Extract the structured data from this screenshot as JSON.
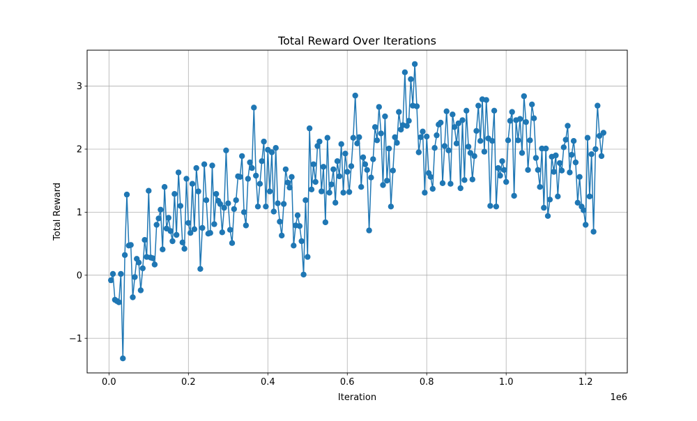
{
  "chart_data": {
    "type": "line",
    "title": "Total Reward Over Iterations",
    "xlabel": "Iteration",
    "ylabel": "Total Reward",
    "x_offset_label": "1e6",
    "xlim": [
      -55000,
      1305000
    ],
    "ylim": [
      -1.55,
      3.57
    ],
    "xticks": [
      0,
      200000,
      400000,
      600000,
      800000,
      1000000,
      1200000
    ],
    "xtick_labels": [
      "0.0",
      "0.2",
      "0.4",
      "0.6",
      "0.8",
      "1.0",
      "1.2"
    ],
    "yticks": [
      -1,
      0,
      1,
      2,
      3
    ],
    "ytick_labels": [
      "−1",
      "0",
      "1",
      "2",
      "3"
    ],
    "grid": true,
    "line_color": "#1f77b4",
    "marker": "circle",
    "series": [
      {
        "x_start": 5000,
        "x_step": 5000,
        "values": [
          -0.08,
          0.02,
          -0.39,
          -0.41,
          -0.43,
          0.02,
          -1.32,
          0.32,
          1.28,
          0.47,
          0.48,
          -0.35,
          -0.03,
          0.26,
          0.2,
          -0.24,
          0.11,
          0.56,
          0.29,
          1.34,
          0.28,
          0.27,
          0.17,
          0.8,
          0.9,
          1.04,
          0.41,
          1.4,
          0.74,
          0.91,
          0.7,
          0.54,
          1.29,
          0.64,
          1.63,
          1.1,
          0.52,
          0.42,
          1.53,
          0.83,
          0.67,
          1.45,
          0.73,
          1.7,
          1.33,
          0.1,
          0.75,
          1.76,
          1.19,
          0.66,
          0.67,
          1.74,
          0.81,
          1.29,
          1.18,
          1.13,
          0.68,
          1.07,
          1.98,
          1.14,
          0.72,
          0.51,
          1.05,
          1.19,
          1.57,
          1.56,
          1.89,
          1.0,
          0.79,
          1.53,
          1.79,
          1.7,
          2.66,
          1.58,
          1.09,
          1.45,
          1.81,
          2.12,
          1.09,
          1.99,
          1.33,
          1.95,
          1.01,
          2.02,
          1.14,
          0.85,
          0.63,
          1.13,
          1.68,
          1.47,
          1.39,
          1.56,
          0.47,
          0.79,
          0.95,
          0.78,
          0.54,
          0.01,
          1.19,
          0.29,
          2.33,
          1.36,
          1.76,
          1.48,
          2.05,
          2.12,
          1.33,
          1.72,
          0.84,
          2.18,
          1.31,
          1.44,
          1.68,
          1.15,
          1.81,
          1.57,
          2.08,
          1.31,
          1.93,
          1.64,
          1.32,
          1.73,
          2.18,
          2.85,
          2.09,
          2.19,
          1.4,
          1.87,
          1.76,
          1.67,
          0.71,
          1.55,
          1.84,
          2.35,
          2.14,
          2.67,
          2.25,
          1.43,
          2.52,
          1.5,
          2.01,
          1.09,
          1.66,
          2.19,
          2.1,
          2.59,
          2.31,
          2.38,
          3.22,
          2.37,
          2.45,
          3.11,
          2.69,
          3.35,
          2.68,
          1.95,
          2.19,
          2.28,
          1.31,
          2.2,
          1.62,
          1.56,
          1.37,
          2.02,
          2.22,
          2.39,
          2.42,
          1.46,
          2.05,
          2.6,
          1.98,
          1.45,
          2.55,
          2.35,
          2.09,
          2.41,
          1.38,
          2.46,
          1.51,
          2.61,
          2.04,
          1.94,
          1.52,
          1.89,
          2.29,
          2.69,
          2.13,
          2.79,
          1.96,
          2.78,
          2.17,
          1.1,
          2.13,
          2.61,
          1.09,
          1.7,
          1.58,
          1.81,
          1.67,
          1.48,
          2.14,
          2.45,
          2.59,
          1.26,
          2.46,
          2.14,
          2.48,
          1.94,
          2.84,
          2.43,
          1.67,
          2.14,
          2.71,
          2.49,
          1.86,
          1.67,
          1.4,
          2.01,
          1.07,
          2.01,
          0.94,
          1.2,
          1.88,
          1.64,
          1.9,
          1.25,
          1.78,
          1.66,
          2.03,
          2.15,
          2.37,
          1.63,
          1.91,
          2.13,
          1.79,
          1.15,
          1.56,
          1.09,
          1.03,
          0.8,
          2.18,
          1.25,
          1.92,
          0.69,
          2.0,
          2.69,
          2.21,
          1.89,
          2.26
        ]
      }
    ]
  }
}
